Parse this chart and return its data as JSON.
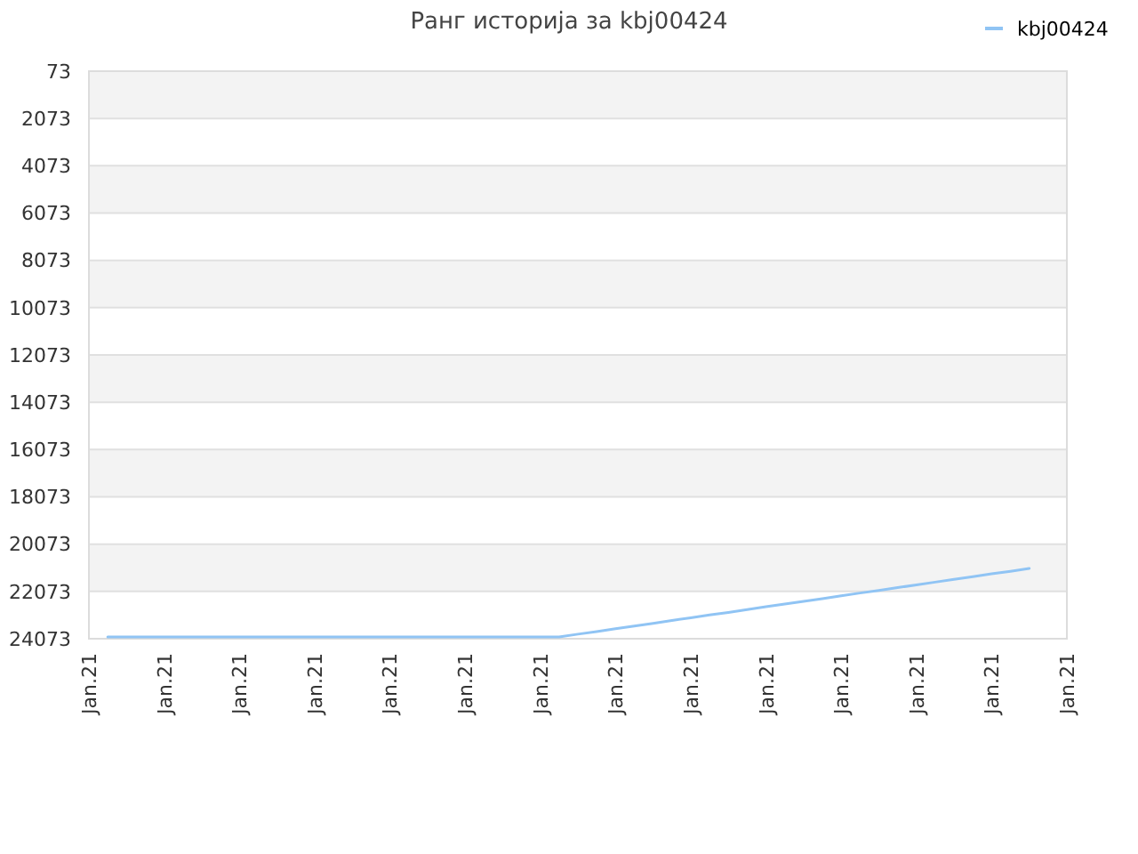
{
  "chart_data": {
    "type": "line",
    "title": "Ранг историја за kbj00424",
    "categories": [
      "Jan.21",
      null,
      null,
      null,
      "Jan.21",
      null,
      null,
      null,
      "Jan.21",
      null,
      null,
      null,
      "Jan.21",
      null,
      null,
      null,
      "Jan.21",
      null,
      null,
      null,
      "Jan.21",
      null,
      null,
      null,
      "Jan.21",
      null,
      null,
      null,
      "Jan.21",
      null,
      null,
      null,
      "Jan.21",
      null,
      null,
      null,
      "Jan.21",
      null,
      null,
      null,
      "Jan.21",
      null,
      null,
      null,
      "Jan.21",
      null,
      null,
      null,
      "Jan.21",
      null,
      null,
      null,
      "Jan.21"
    ],
    "series": [
      {
        "name": "kbj00424",
        "color": "#90c4f4",
        "values": [
          null,
          24000,
          24000,
          24000,
          24000,
          24000,
          24000,
          24000,
          24000,
          24000,
          24000,
          24000,
          24000,
          24000,
          24000,
          24000,
          24000,
          24000,
          24000,
          24000,
          24000,
          24000,
          24000,
          24000,
          24000,
          24000,
          23880,
          23770,
          23650,
          23540,
          23420,
          23300,
          23190,
          23070,
          22960,
          22840,
          22720,
          22610,
          22490,
          22380,
          22260,
          22140,
          22030,
          21910,
          21800,
          21680,
          21560,
          21450,
          21330,
          21220,
          21100,
          null,
          null
        ]
      }
    ],
    "ylim": [
      24073,
      73
    ],
    "yticks": [
      73,
      2073,
      4073,
      6073,
      8073,
      10073,
      12073,
      14073,
      16073,
      18073,
      20073,
      22073,
      24073
    ],
    "grid": "y",
    "legend": "top right",
    "marker": "none",
    "line_style": "solid"
  }
}
